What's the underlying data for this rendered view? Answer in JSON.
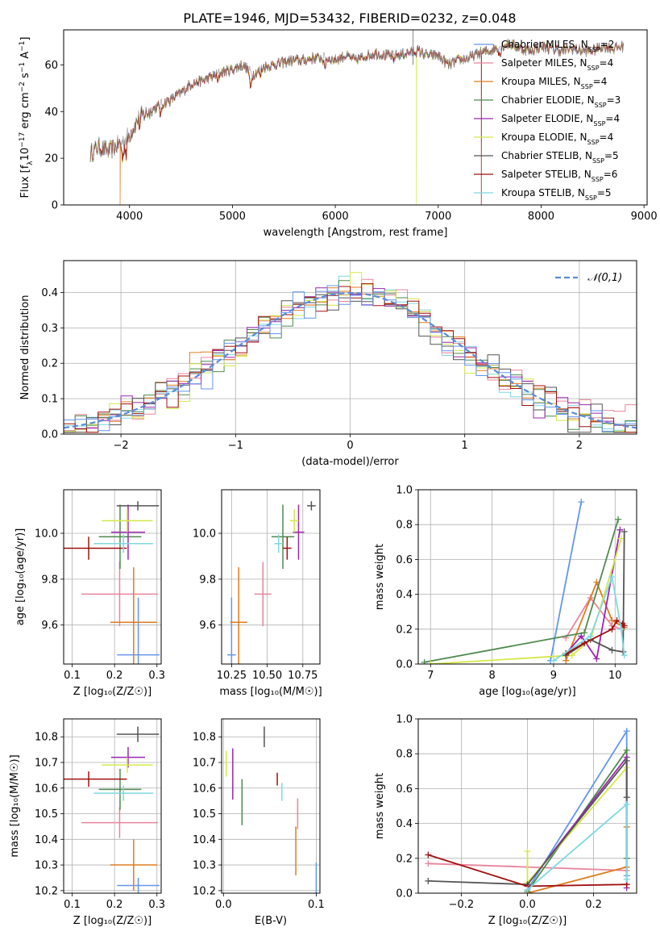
{
  "title": "PLATE=1946, MJD=53432, FIBERID=0232, z=0.048",
  "models": [
    {
      "key": "CM",
      "label": "Chabrier MILES, N",
      "sub": "SSP",
      "n": "=2",
      "color": "#6495ed"
    },
    {
      "key": "SM",
      "label": "Salpeter MILES, N",
      "sub": "SSP",
      "n": "=4",
      "color": "#e8849c"
    },
    {
      "key": "KM",
      "label": "Kroupa MILES, N",
      "sub": "SSP",
      "n": "=4",
      "color": "#e07b1f"
    },
    {
      "key": "CE",
      "label": "Chabrier ELODIE, N",
      "sub": "SSP",
      "n": "=3",
      "color": "#4f8a4f"
    },
    {
      "key": "SE",
      "label": "Salpeter ELODIE, N",
      "sub": "SSP",
      "n": "=4",
      "color": "#9a27b0"
    },
    {
      "key": "KE",
      "label": "Kroupa ELODIE, N",
      "sub": "SSP",
      "n": "=4",
      "color": "#d4e84a"
    },
    {
      "key": "CS",
      "label": "Chabrier STELIB, N",
      "sub": "SSP",
      "n": "=5",
      "color": "#555555"
    },
    {
      "key": "SS",
      "label": "Salpeter STELIB, N",
      "sub": "SSP",
      "n": "=6",
      "color": "#a01010"
    },
    {
      "key": "KS",
      "label": "Kroupa STELIB, N",
      "sub": "SSP",
      "n": "=5",
      "color": "#7fd8e0"
    }
  ],
  "chart_data": [
    {
      "type": "line",
      "id": "spectrum",
      "xlabel": "wavelength [Angstrom, rest frame]",
      "ylabel": "Flux [f",
      "ylabel_parts": [
        "Flux [f",
        "λ",
        "10",
        "−17",
        " erg cm",
        "−2",
        " s",
        "−1",
        " A",
        "−1",
        "]"
      ],
      "xlim": [
        3360,
        9030
      ],
      "ylim": [
        0,
        75
      ],
      "xticks": [
        4000,
        5000,
        6000,
        7000,
        8000,
        9000
      ],
      "yticks": [
        0,
        20,
        40,
        60
      ],
      "series_anchors": {
        "x": [
          3620,
          3700,
          3800,
          3900,
          3950,
          4000,
          4100,
          4200,
          4300,
          4400,
          4500,
          4600,
          4700,
          4800,
          4900,
          5000,
          5100,
          5200,
          5300,
          5400,
          5500,
          5600,
          5700,
          5800,
          5900,
          6000,
          6100,
          6200,
          6300,
          6400,
          6500,
          6600,
          6700,
          6800,
          6900,
          7000,
          7100,
          7200,
          7300,
          7400,
          7500,
          7600,
          7700,
          7800,
          7900,
          8000,
          8100,
          8200,
          8300,
          8400,
          8500,
          8600,
          8700,
          8800
        ],
        "y": [
          22,
          25,
          23,
          26,
          28,
          30,
          38,
          40,
          43,
          45,
          48,
          52,
          53,
          55,
          57,
          58,
          60,
          56,
          59,
          60,
          61,
          62,
          62,
          63,
          63,
          62,
          64,
          62,
          64,
          65,
          64,
          64,
          65,
          66,
          64,
          64,
          60,
          62,
          63,
          65,
          66,
          68,
          69,
          67,
          66,
          68,
          67,
          66,
          67,
          66,
          66,
          68,
          67,
          68
        ]
      },
      "dropouts": [
        {
          "model": "KM",
          "x": 3910
        },
        {
          "model": "KE",
          "x": 6790
        },
        {
          "model": "SS",
          "x": 7420
        }
      ],
      "legend": "top-right"
    },
    {
      "type": "histogram",
      "id": "residuals",
      "xlabel": "(data-model)/error",
      "ylabel": "Normed distribution",
      "xlim": [
        -2.5,
        2.5
      ],
      "ylim": [
        0,
        0.49
      ],
      "xticks": [
        -2,
        -1,
        0,
        1,
        2
      ],
      "yticks": [
        0.0,
        0.1,
        0.2,
        0.3,
        0.4
      ],
      "reference": {
        "label": "𝒩(0,1)",
        "mean": 0,
        "sigma": 1
      },
      "bins": {
        "start": -2.5,
        "width": 0.1,
        "count": 50
      }
    },
    {
      "type": "errorbar",
      "id": "age-vs-Z",
      "xlabel": "Z [log₁₀(Z/Z☉)]",
      "ylabel": "age  [log₁₀(age/yr)]",
      "xlim": [
        0.08,
        0.31
      ],
      "ylim": [
        9.43,
        10.19
      ],
      "xticks": [
        0.1,
        0.2,
        0.3
      ],
      "yticks": [
        9.6,
        9.8,
        10.0
      ],
      "points": [
        {
          "model": "CM",
          "x": 0.256,
          "xerr": 0.05,
          "y": 9.47,
          "yerr": 0.25
        },
        {
          "model": "SM",
          "x": 0.212,
          "xerr": 0.09,
          "y": 9.735,
          "yerr": 0.14
        },
        {
          "model": "KM",
          "x": 0.245,
          "xerr": 0.055,
          "y": 9.612,
          "yerr": 0.24
        },
        {
          "model": "CE",
          "x": 0.213,
          "xerr": 0.05,
          "y": 9.985,
          "yerr": 0.14
        },
        {
          "model": "SE",
          "x": 0.232,
          "xerr": 0.04,
          "y": 10.005,
          "yerr": 0.12
        },
        {
          "model": "KE",
          "x": 0.23,
          "xerr": 0.06,
          "y": 10.055,
          "yerr": 0.05
        },
        {
          "model": "CS",
          "x": 0.255,
          "xerr": 0.05,
          "y": 10.12,
          "yerr": 0.02
        },
        {
          "model": "SS",
          "x": 0.139,
          "xerr": 0.09,
          "y": 9.935,
          "yerr": 0.05
        },
        {
          "model": "KS",
          "x": 0.221,
          "xerr": 0.07,
          "y": 9.955,
          "yerr": 0.04
        }
      ]
    },
    {
      "type": "errorbar",
      "id": "age-vs-mass",
      "xlabel": "mass [log₁₀(M/M☉)]",
      "ylabel": "",
      "xlim": [
        10.18,
        10.87
      ],
      "ylim": [
        9.43,
        10.19
      ],
      "xticks": [
        10.25,
        10.5,
        10.75
      ],
      "yticks": [
        9.6,
        9.8,
        10.0
      ],
      "points": [
        {
          "model": "CM",
          "x": 10.25,
          "xerr": 0.03,
          "y": 9.47,
          "yerr": 0.25
        },
        {
          "model": "SM",
          "x": 10.47,
          "xerr": 0.06,
          "y": 9.735,
          "yerr": 0.14
        },
        {
          "model": "KM",
          "x": 10.3,
          "xerr": 0.06,
          "y": 9.612,
          "yerr": 0.24
        },
        {
          "model": "CE",
          "x": 10.61,
          "xerr": 0.08,
          "y": 9.985,
          "yerr": 0.14
        },
        {
          "model": "SE",
          "x": 10.72,
          "xerr": 0.04,
          "y": 10.005,
          "yerr": 0.12
        },
        {
          "model": "KE",
          "x": 10.69,
          "xerr": 0.03,
          "y": 10.055,
          "yerr": 0.05
        },
        {
          "model": "CS",
          "x": 10.81,
          "xerr": 0.03,
          "y": 10.12,
          "yerr": 0.02
        },
        {
          "model": "SS",
          "x": 10.64,
          "xerr": 0.03,
          "y": 9.935,
          "yerr": 0.05
        },
        {
          "model": "KS",
          "x": 10.58,
          "xerr": 0.03,
          "y": 9.955,
          "yerr": 0.04
        }
      ]
    },
    {
      "type": "line",
      "id": "weight-vs-age",
      "xlabel": "age  [log₁₀(age/yr)]",
      "ylabel": "mass weight",
      "xlim": [
        6.8,
        10.35
      ],
      "ylim": [
        0,
        1
      ],
      "xticks": [
        7,
        8,
        9,
        10
      ],
      "yticks": [
        0.0,
        0.2,
        0.4,
        0.6,
        0.8,
        1.0
      ],
      "series": [
        {
          "model": "CM",
          "x": [
            8.95,
            9.45
          ],
          "y": [
            0.02,
            0.93
          ]
        },
        {
          "model": "SM",
          "x": [
            9.2,
            9.6,
            9.95,
            10.1
          ],
          "y": [
            0.15,
            0.38,
            0.22,
            0.2
          ]
        },
        {
          "model": "KM",
          "x": [
            9.2,
            9.7,
            9.95,
            10.15
          ],
          "y": [
            0.02,
            0.47,
            0.25,
            0.21
          ]
        },
        {
          "model": "CE",
          "x": [
            6.9,
            9.5,
            10.05
          ],
          "y": [
            0.01,
            0.18,
            0.83
          ]
        },
        {
          "model": "SE",
          "x": [
            9.2,
            9.45,
            9.7,
            10.08
          ],
          "y": [
            0.06,
            0.16,
            0.03,
            0.77
          ]
        },
        {
          "model": "KE",
          "x": [
            7.0,
            9.3,
            9.6,
            10.1
          ],
          "y": [
            0.0,
            0.05,
            0.14,
            0.72
          ]
        },
        {
          "model": "CS",
          "x": [
            9.2,
            9.6,
            9.95,
            10.13,
            10.15
          ],
          "y": [
            0.05,
            0.14,
            0.08,
            0.07,
            0.76
          ]
        },
        {
          "model": "SS",
          "x": [
            9.2,
            9.5,
            9.95,
            10.03,
            10.12,
            10.15
          ],
          "y": [
            0.06,
            0.12,
            0.2,
            0.25,
            0.23,
            0.22
          ]
        },
        {
          "model": "KS",
          "x": [
            9.0,
            9.6,
            9.95,
            10.1,
            10.15
          ],
          "y": [
            0.02,
            0.16,
            0.5,
            0.2,
            0.05
          ]
        }
      ]
    },
    {
      "type": "errorbar",
      "id": "mass-vs-Z",
      "xlabel": "Z [log₁₀(Z/Z☉)]",
      "ylabel": "mass [log₁₀(M/M☉)]",
      "xlim": [
        0.08,
        0.31
      ],
      "ylim": [
        10.19,
        10.87
      ],
      "xticks": [
        0.1,
        0.2,
        0.3
      ],
      "yticks": [
        10.2,
        10.3,
        10.4,
        10.5,
        10.6,
        10.7,
        10.8
      ],
      "points": [
        {
          "model": "CM",
          "x": 0.256,
          "xerr": 0.05,
          "y": 10.22,
          "yerr": 0.03
        },
        {
          "model": "SM",
          "x": 0.212,
          "xerr": 0.09,
          "y": 10.465,
          "yerr": 0.06
        },
        {
          "model": "KM",
          "x": 0.245,
          "xerr": 0.055,
          "y": 10.3,
          "yerr": 0.1
        },
        {
          "model": "CE",
          "x": 0.213,
          "xerr": 0.05,
          "y": 10.595,
          "yerr": 0.08
        },
        {
          "model": "SE",
          "x": 0.232,
          "xerr": 0.04,
          "y": 10.72,
          "yerr": 0.04
        },
        {
          "model": "KE",
          "x": 0.23,
          "xerr": 0.06,
          "y": 10.69,
          "yerr": 0.03
        },
        {
          "model": "CS",
          "x": 0.255,
          "xerr": 0.05,
          "y": 10.81,
          "yerr": 0.03
        },
        {
          "model": "SS",
          "x": 0.139,
          "xerr": 0.09,
          "y": 10.635,
          "yerr": 0.03
        },
        {
          "model": "KS",
          "x": 0.221,
          "xerr": 0.07,
          "y": 10.58,
          "yerr": 0.03
        }
      ]
    },
    {
      "type": "errorbar",
      "id": "mass-vs-EBV",
      "xlabel": "E(B-V)",
      "ylabel": "",
      "xlim": [
        -0.002,
        0.104
      ],
      "ylim": [
        10.19,
        10.87
      ],
      "xticks": [
        0.0,
        0.1
      ],
      "yticks": [
        10.2,
        10.3,
        10.4,
        10.5,
        10.6,
        10.7,
        10.8
      ],
      "points": [
        {
          "model": "CM",
          "x": 0.1,
          "y": 10.25,
          "yerr": 0.06
        },
        {
          "model": "SM",
          "x": 0.08,
          "y": 10.5,
          "yerr": 0.06
        },
        {
          "model": "KM",
          "x": 0.078,
          "y": 10.355,
          "yerr": 0.095
        },
        {
          "model": "CE",
          "x": 0.02,
          "y": 10.545,
          "yerr": 0.09
        },
        {
          "model": "SE",
          "x": 0.01,
          "y": 10.655,
          "yerr": 0.1
        },
        {
          "model": "KE",
          "x": 0.003,
          "y": 10.695,
          "yerr": 0.05
        },
        {
          "model": "CS",
          "x": 0.044,
          "y": 10.8,
          "yerr": 0.04
        },
        {
          "model": "SS",
          "x": 0.058,
          "y": 10.635,
          "yerr": 0.025
        },
        {
          "model": "KS",
          "x": 0.063,
          "y": 10.585,
          "yerr": 0.035
        }
      ]
    },
    {
      "type": "line",
      "id": "weight-vs-Z",
      "xlabel": "Z [log₁₀(Z/Z☉)]",
      "ylabel": "mass weight",
      "xlim": [
        -0.33,
        0.33
      ],
      "ylim": [
        0,
        1
      ],
      "xticks": [
        -0.2,
        0.0,
        0.2
      ],
      "yticks": [
        0.0,
        0.2,
        0.4,
        0.6,
        0.8,
        1.0
      ],
      "series": [
        {
          "model": "CM",
          "x": [
            0.0,
            0.3,
            0.3
          ],
          "y": [
            0.02,
            0.93,
            0.1
          ]
        },
        {
          "model": "SM",
          "x": [
            -0.3,
            0.0,
            0.3
          ],
          "y": [
            0.17,
            0.15,
            0.13
          ]
        },
        {
          "model": "KM",
          "x": [
            0.0,
            0.3,
            0.3
          ],
          "y": [
            0.0,
            0.15,
            0.38
          ]
        },
        {
          "model": "CE",
          "x": [
            0.0,
            0.3,
            0.3
          ],
          "y": [
            0.01,
            0.82,
            0.2
          ]
        },
        {
          "model": "SE",
          "x": [
            0.0,
            0.3,
            0.3
          ],
          "y": [
            0.05,
            0.78,
            0.03
          ]
        },
        {
          "model": "KE",
          "x": [
            0.0,
            0.0,
            0.3
          ],
          "y": [
            0.24,
            0.06,
            0.72
          ]
        },
        {
          "model": "CS",
          "x": [
            -0.3,
            0.0,
            0.3,
            0.3
          ],
          "y": [
            0.07,
            0.05,
            0.76,
            0.55
          ]
        },
        {
          "model": "SS",
          "x": [
            -0.3,
            0.0,
            0.3
          ],
          "y": [
            0.22,
            0.04,
            0.05
          ]
        },
        {
          "model": "KS",
          "x": [
            0.0,
            0.3,
            0.3
          ],
          "y": [
            0.02,
            0.51,
            0.08
          ]
        }
      ]
    }
  ]
}
